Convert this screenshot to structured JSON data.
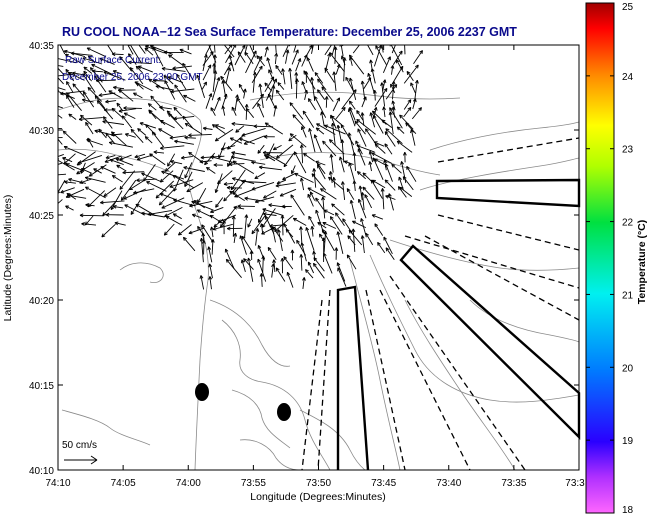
{
  "chart_data": {
    "type": "map",
    "title": "RU COOL  NOAA−12  Sea Surface Temperature:  December 25, 2006 2237 GMT",
    "subtitle_line1": "Raw Surface Current:",
    "subtitle_line2": "December 25, 2006 23:00 GMT",
    "xlabel": "Longitude (Degrees:Minutes)",
    "ylabel": "Latitude (Degrees:Minutes)",
    "x_ticks": [
      "74:10",
      "74:05",
      "74:00",
      "73:55",
      "73:50",
      "73:45",
      "73:40",
      "73:35",
      "73:3"
    ],
    "y_ticks": [
      "40:10",
      "40:15",
      "40:20",
      "40:25",
      "40:30",
      "40:35"
    ],
    "xlim_minutes": [
      -4450,
      -4410
    ],
    "ylim_minutes": [
      2410,
      2435
    ],
    "scale_label": "50 cm/s",
    "colorbar": {
      "label": "Temperature (°C)",
      "range": [
        18,
        25
      ],
      "ticks": [
        "18",
        "19",
        "20",
        "21",
        "22",
        "23",
        "24",
        "25"
      ],
      "colormap": "jet-like with magenta at low end"
    },
    "colors": {
      "title": "#0a0a8c",
      "arrows": "#000000",
      "bathymetry": "#8a8a8a"
    },
    "buoys": [
      {
        "lon_min": -4438.8,
        "lat_min": 2414.5
      },
      {
        "lon_min": -4432.3,
        "lat_min": 2413.2
      }
    ]
  }
}
